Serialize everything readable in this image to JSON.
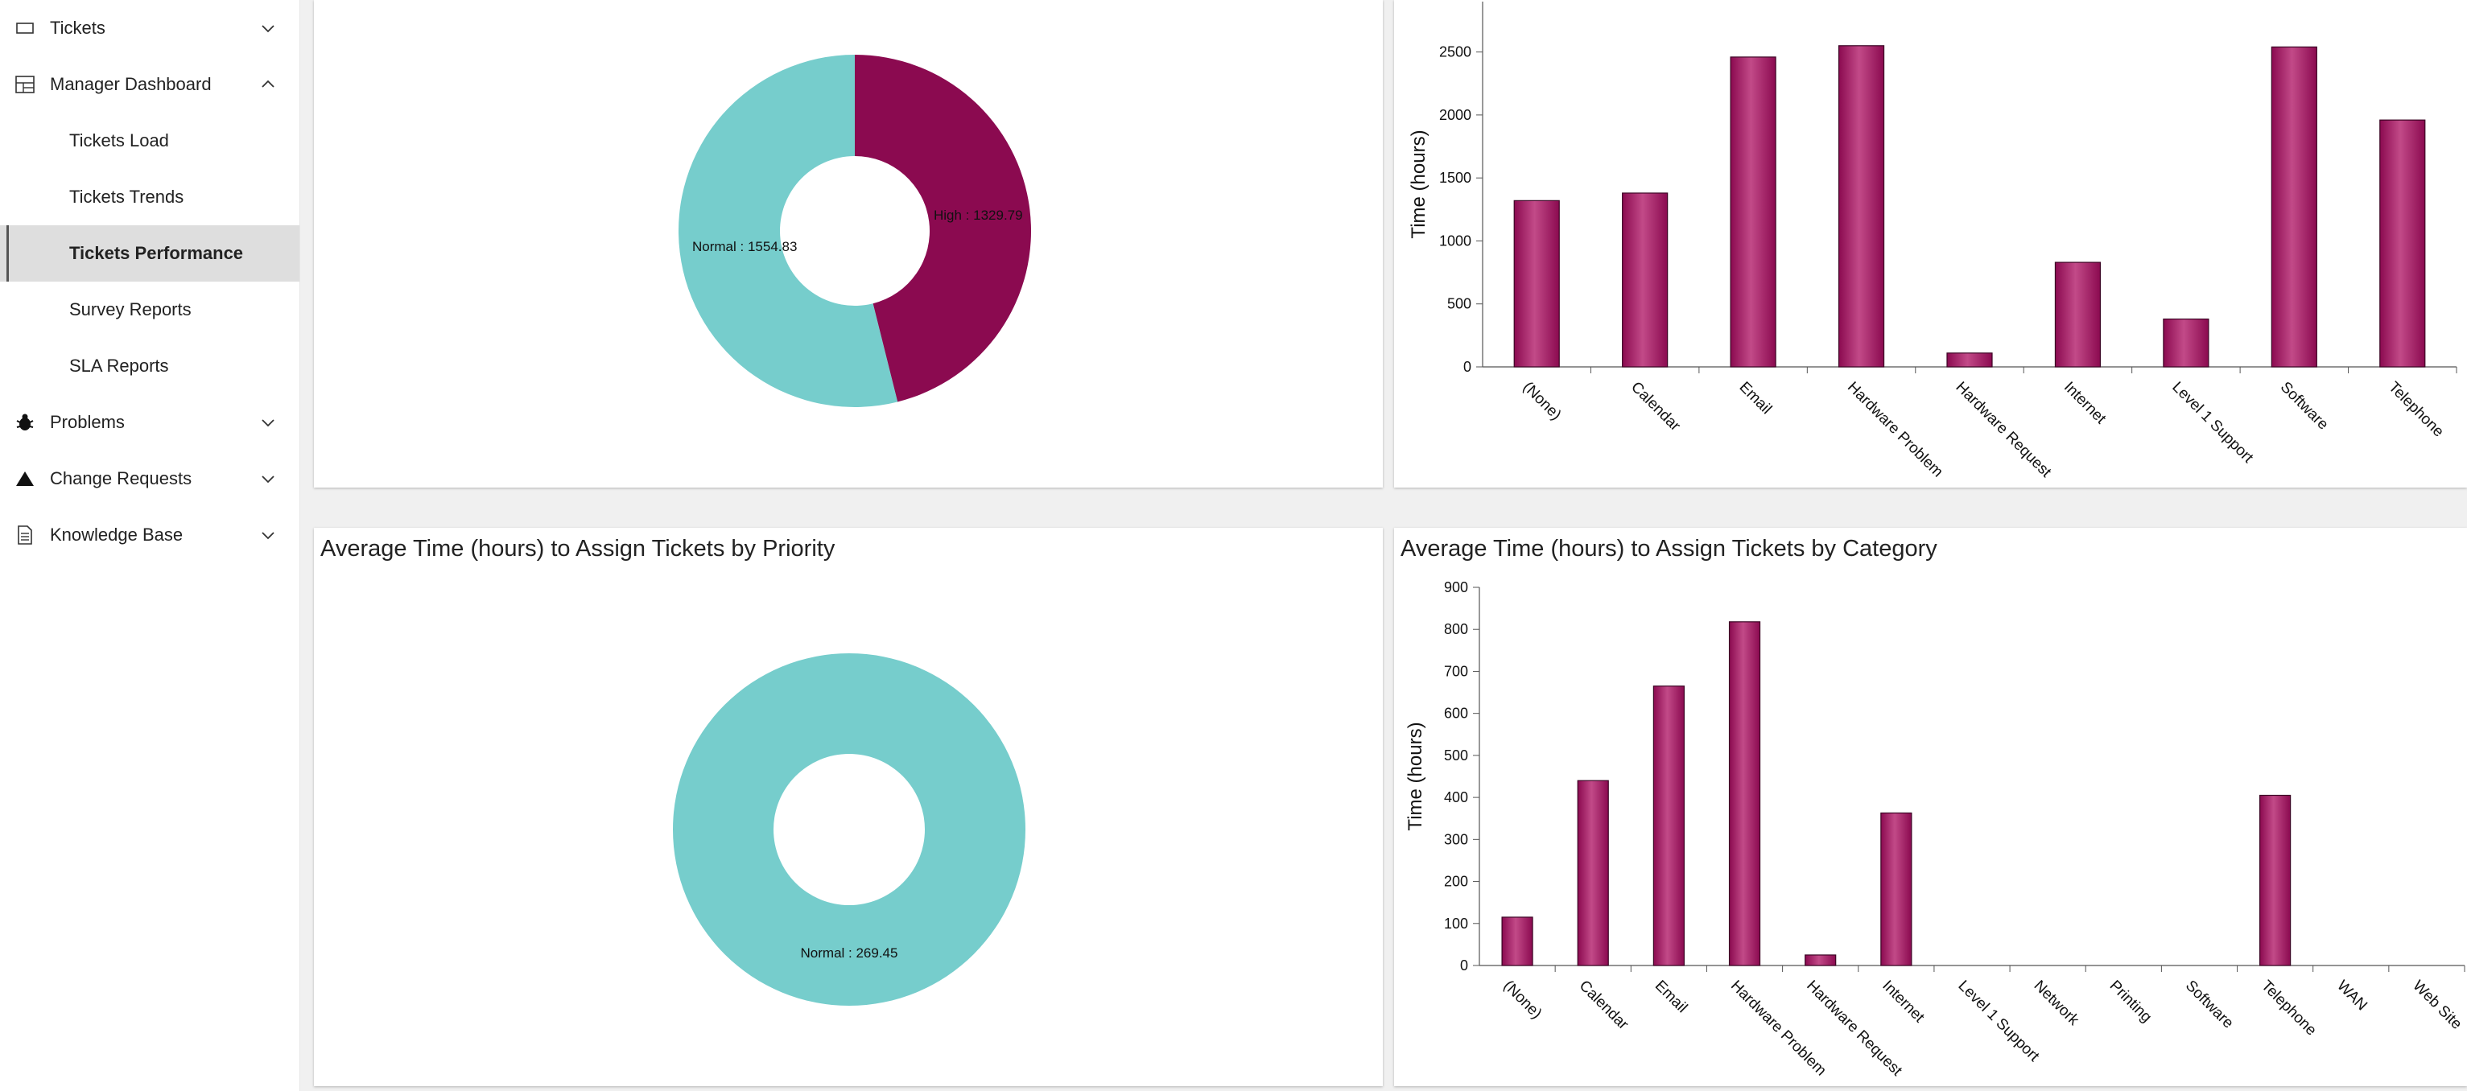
{
  "sidebar": {
    "tickets": "Tickets",
    "manager_dashboard": "Manager Dashboard",
    "sub_items": [
      "Tickets Load",
      "Tickets Trends",
      "Tickets Performance",
      "Survey Reports",
      "SLA Reports"
    ],
    "problems": "Problems",
    "change_requests": "Change Requests",
    "knowledge_base": "Knowledge Base"
  },
  "colors": {
    "bar": "#8b0a50",
    "teal": "#76cdcc",
    "maroon": "#8b0a50"
  },
  "panels": {
    "bottom_left_title": "Average Time (hours) to Assign Tickets by Priority",
    "bottom_right_title": "Average Time (hours) to Assign Tickets by Category"
  },
  "chart_data": [
    {
      "type": "pie",
      "title": "",
      "slices": [
        {
          "label": "High",
          "value": 1329.79,
          "text": "High : 1329.79",
          "color": "#8b0a50"
        },
        {
          "label": "Normal",
          "value": 1554.83,
          "text": "Normal : 1554.83",
          "color": "#76cdcc"
        }
      ]
    },
    {
      "type": "bar",
      "title": "",
      "ylabel": "Time (hours)",
      "ylim": [
        0,
        2900
      ],
      "yticks": [
        0,
        500,
        1000,
        1500,
        2000,
        2500
      ],
      "categories": [
        "(None)",
        "Calendar",
        "Email",
        "Hardware Problem",
        "Hardware Request",
        "Internet",
        "Level 1 Support",
        "Software",
        "Telephone"
      ],
      "values": [
        1320,
        1380,
        2460,
        2550,
        110,
        830,
        380,
        2540,
        1960
      ]
    },
    {
      "type": "pie",
      "title": "Average Time (hours) to Assign Tickets by Priority",
      "slices": [
        {
          "label": "Normal",
          "value": 269.45,
          "text": "Normal : 269.45",
          "color": "#76cdcc"
        }
      ]
    },
    {
      "type": "bar",
      "title": "Average Time (hours) to Assign Tickets by Category",
      "ylabel": "Time (hours)",
      "ylim": [
        0,
        900
      ],
      "yticks": [
        0,
        100,
        200,
        300,
        400,
        500,
        600,
        700,
        800,
        900
      ],
      "categories": [
        "(None)",
        "Calendar",
        "Email",
        "Hardware Problem",
        "Hardware Request",
        "Internet",
        "Level 1 Support",
        "Network",
        "Printing",
        "Software",
        "Telephone",
        "WAN",
        "Web Site"
      ],
      "values": [
        115,
        440,
        665,
        818,
        25,
        363,
        0,
        0,
        0,
        0,
        405,
        0,
        0
      ]
    }
  ]
}
